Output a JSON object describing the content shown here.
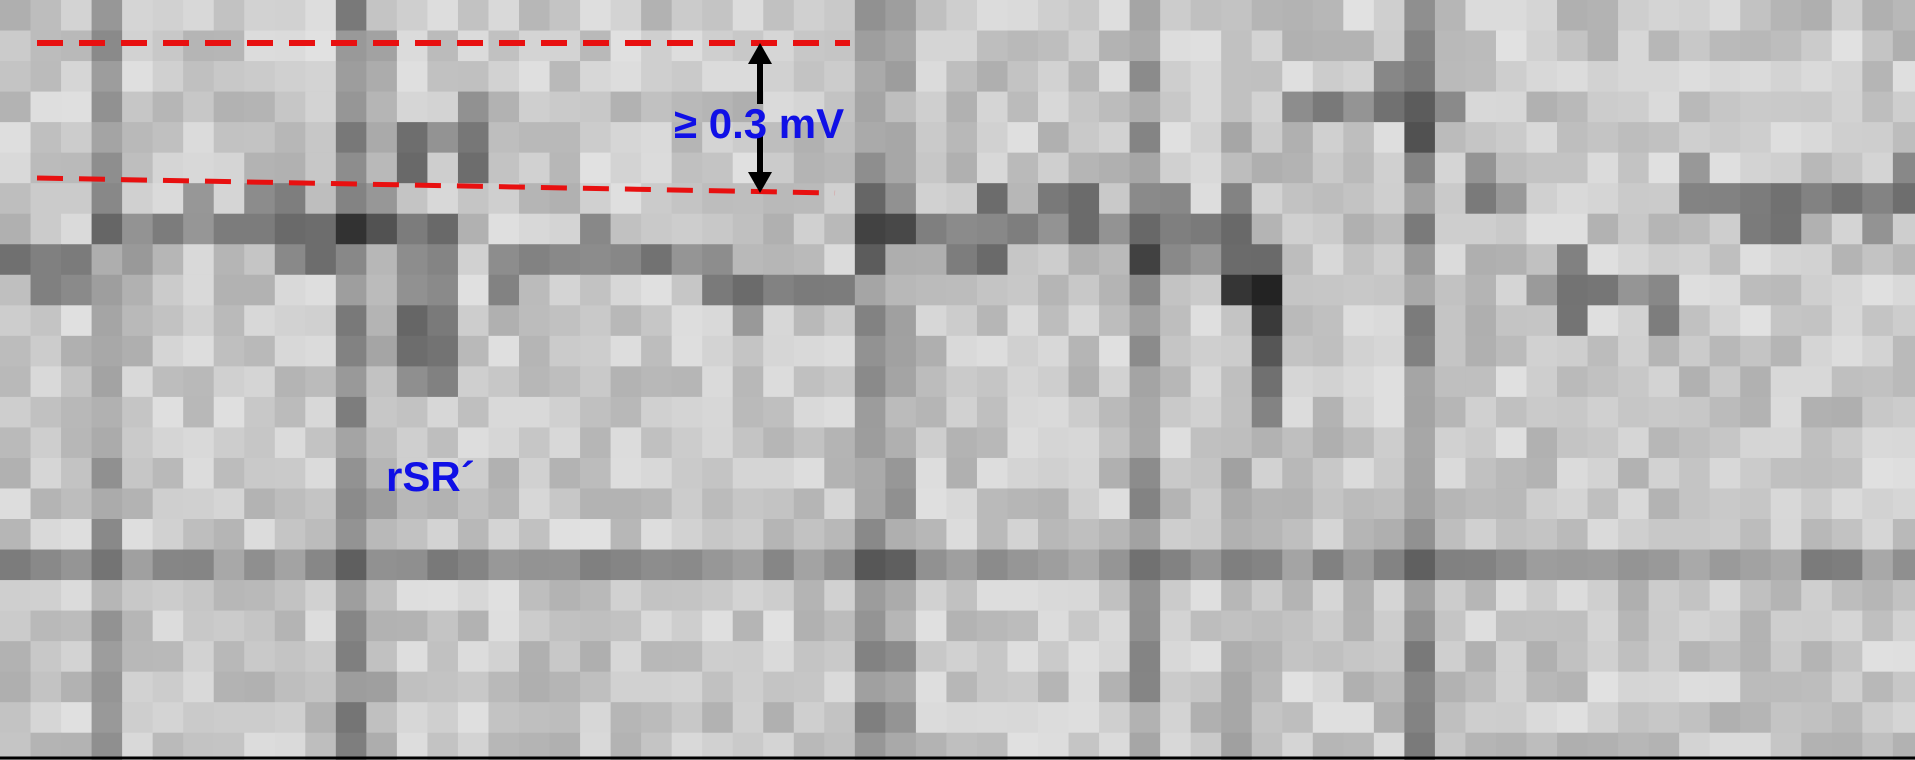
{
  "annotations": {
    "amplitude_label": "≥ 0.3 mV",
    "pattern_label": "rSR´"
  }
}
